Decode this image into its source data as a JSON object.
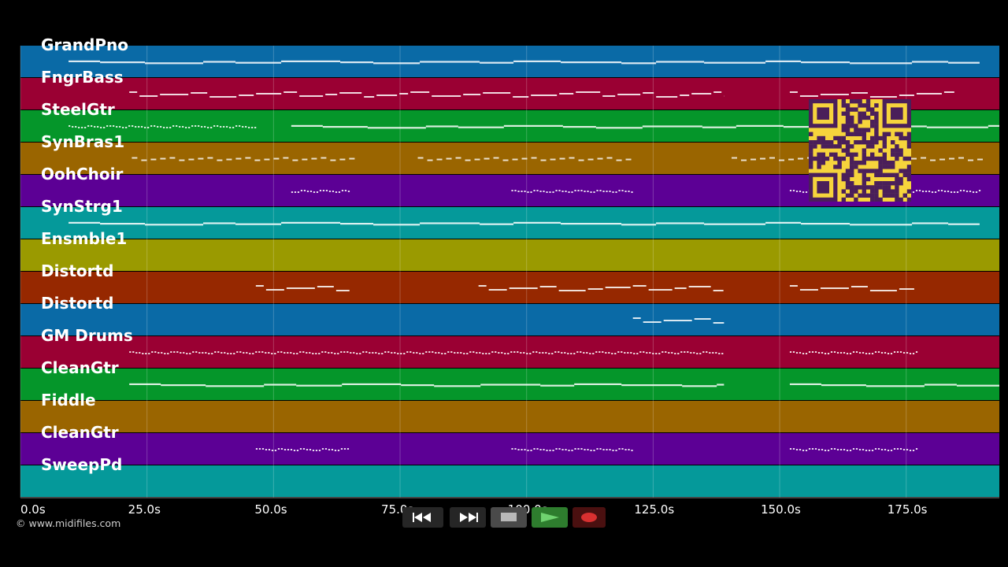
{
  "app": {
    "copyright": "© www.midifiles.com"
  },
  "colors": {
    "background": "#000000",
    "note": "#ffffff",
    "grid": "#ffffff",
    "qr_background": "#f6d43c",
    "qr_modules": "#4a1f5a"
  },
  "tracks": [
    {
      "name": "GrandPno",
      "color": "#0a6aa6"
    },
    {
      "name": "FngrBass",
      "color": "#9a0033"
    },
    {
      "name": "SteelGtr",
      "color": "#05962a"
    },
    {
      "name": "SynBras1",
      "color": "#9a6500"
    },
    {
      "name": "OohChoir",
      "color": "#5c0095"
    },
    {
      "name": "SynStrg1",
      "color": "#05999a"
    },
    {
      "name": "Ensmble1",
      "color": "#9a9a00"
    },
    {
      "name": "Distortd",
      "color": "#962800"
    },
    {
      "name": "Distortd",
      "color": "#0a6aa6"
    },
    {
      "name": "GM Drums",
      "color": "#9a0033"
    },
    {
      "name": "CleanGtr",
      "color": "#05962a"
    },
    {
      "name": "Fiddle",
      "color": "#9a6500"
    },
    {
      "name": "CleanGtr",
      "color": "#5c0095"
    },
    {
      "name": "SweepPd",
      "color": "#05999a"
    }
  ],
  "timeline": {
    "min_seconds": 0,
    "max_seconds": 193.4,
    "ticks": [
      {
        "value": 0,
        "label": "0.0s"
      },
      {
        "value": 25,
        "label": "25.0s"
      },
      {
        "value": 50,
        "label": "50.0s"
      },
      {
        "value": 75,
        "label": "75.0s"
      },
      {
        "value": 100,
        "label": "100.0s"
      },
      {
        "value": 125,
        "label": "125.0s"
      },
      {
        "value": 150,
        "label": "150.0s"
      },
      {
        "value": 175,
        "label": "175.0s"
      }
    ]
  },
  "note_segments": [
    {
      "track": 0,
      "start": 9.5,
      "end": 189.5,
      "style": "solid"
    },
    {
      "track": 1,
      "start": 21.5,
      "end": 139.0,
      "style": "sparse"
    },
    {
      "track": 1,
      "start": 152.0,
      "end": 184.5,
      "style": "sparse"
    },
    {
      "track": 2,
      "start": 9.5,
      "end": 46.5,
      "style": "dotted"
    },
    {
      "track": 2,
      "start": 53.5,
      "end": 193.4,
      "style": "solid"
    },
    {
      "track": 3,
      "start": 22.0,
      "end": 65.0,
      "style": "dashed"
    },
    {
      "track": 3,
      "start": 78.5,
      "end": 121.0,
      "style": "dashed"
    },
    {
      "track": 3,
      "start": 140.5,
      "end": 189.5,
      "style": "dashed"
    },
    {
      "track": 4,
      "start": 53.5,
      "end": 65.0,
      "style": "dotted"
    },
    {
      "track": 4,
      "start": 97.0,
      "end": 121.0,
      "style": "dotted"
    },
    {
      "track": 4,
      "start": 152.0,
      "end": 189.5,
      "style": "dotted"
    },
    {
      "track": 5,
      "start": 9.5,
      "end": 189.5,
      "style": "solid"
    },
    {
      "track": 7,
      "start": 46.5,
      "end": 65.0,
      "style": "sparse"
    },
    {
      "track": 7,
      "start": 90.5,
      "end": 139.0,
      "style": "sparse"
    },
    {
      "track": 7,
      "start": 152.0,
      "end": 177.0,
      "style": "sparse"
    },
    {
      "track": 8,
      "start": 121.0,
      "end": 139.0,
      "style": "sparse"
    },
    {
      "track": 9,
      "start": 21.5,
      "end": 139.0,
      "style": "dotted"
    },
    {
      "track": 9,
      "start": 152.0,
      "end": 177.0,
      "style": "dotted"
    },
    {
      "track": 10,
      "start": 21.5,
      "end": 139.0,
      "style": "solid"
    },
    {
      "track": 10,
      "start": 152.0,
      "end": 193.4,
      "style": "solid"
    },
    {
      "track": 12,
      "start": 46.5,
      "end": 65.0,
      "style": "dotted"
    },
    {
      "track": 12,
      "start": 97.0,
      "end": 121.0,
      "style": "dotted"
    },
    {
      "track": 12,
      "start": 152.0,
      "end": 177.0,
      "style": "dotted"
    }
  ],
  "transport": {
    "buttons": [
      {
        "name": "rewind-button",
        "icon": "rewind-icon"
      },
      {
        "name": "fast-forward-button",
        "icon": "fast-forward-icon"
      },
      {
        "name": "stop-button",
        "icon": "stop-icon"
      },
      {
        "name": "play-button",
        "icon": "play-icon"
      },
      {
        "name": "record-button",
        "icon": "record-icon"
      }
    ]
  },
  "qr_code": {
    "icon": "qr-code-icon"
  }
}
